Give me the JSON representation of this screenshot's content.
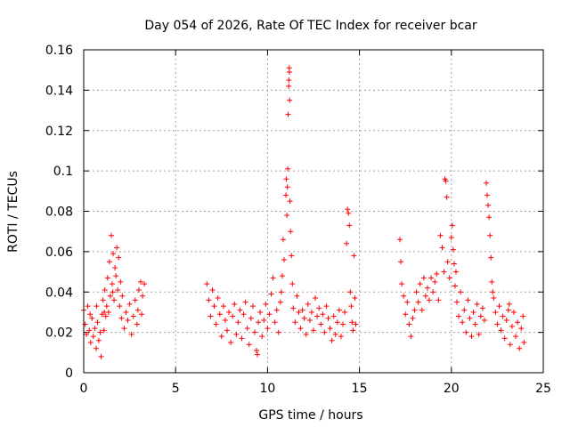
{
  "chart_data": {
    "type": "scatter",
    "title": "Day 054 of 2026, Rate Of TEC Index for receiver bcar",
    "xlabel": "GPS time / hours",
    "ylabel": "ROTI / TECUs",
    "xlim": [
      0,
      25
    ],
    "ylim": [
      0,
      0.16
    ],
    "xticks": [
      "0",
      "5",
      "10",
      "15",
      "20",
      "25"
    ],
    "yticks": [
      "0",
      "0.02",
      "0.04",
      "0.06",
      "0.08",
      "0.1",
      "0.12",
      "0.14",
      "0.16"
    ],
    "grid": true,
    "marker": "plus",
    "color": "#ff0000",
    "series": [
      {
        "points": [
          [
            0.0,
            0.031
          ],
          [
            0.08,
            0.024
          ],
          [
            0.15,
            0.019
          ],
          [
            0.22,
            0.033
          ],
          [
            0.3,
            0.021
          ],
          [
            0.38,
            0.015
          ],
          [
            0.45,
            0.027
          ],
          [
            0.52,
            0.018
          ],
          [
            0.6,
            0.022
          ],
          [
            0.68,
            0.012
          ],
          [
            0.75,
            0.025
          ],
          [
            0.82,
            0.016
          ],
          [
            0.9,
            0.02
          ],
          [
            0.95,
            0.008
          ],
          [
            1.0,
            0.029
          ],
          [
            1.05,
            0.036
          ],
          [
            1.1,
            0.021
          ],
          [
            1.15,
            0.041
          ],
          [
            1.2,
            0.028
          ],
          [
            1.25,
            0.033
          ],
          [
            1.3,
            0.047
          ],
          [
            1.35,
            0.03
          ],
          [
            1.4,
            0.055
          ],
          [
            1.45,
            0.038
          ],
          [
            1.5,
            0.068
          ],
          [
            1.55,
            0.044
          ],
          [
            1.6,
            0.059
          ],
          [
            1.65,
            0.036
          ],
          [
            1.7,
            0.052
          ],
          [
            1.75,
            0.048
          ],
          [
            1.8,
            0.062
          ],
          [
            1.85,
            0.041
          ],
          [
            1.9,
            0.057
          ],
          [
            1.95,
            0.033
          ],
          [
            2.0,
            0.045
          ],
          [
            2.05,
            0.027
          ],
          [
            2.1,
            0.038
          ],
          [
            2.2,
            0.022
          ],
          [
            2.3,
            0.03
          ],
          [
            2.4,
            0.026
          ],
          [
            2.5,
            0.034
          ],
          [
            2.6,
            0.019
          ],
          [
            2.7,
            0.028
          ],
          [
            2.8,
            0.036
          ],
          [
            2.9,
            0.024
          ],
          [
            3.0,
            0.041
          ],
          [
            3.1,
            0.045
          ],
          [
            3.2,
            0.038
          ],
          [
            3.3,
            0.044
          ],
          [
            3.15,
            0.029
          ],
          [
            2.95,
            0.031
          ],
          [
            0.35,
            0.029
          ],
          [
            0.7,
            0.033
          ],
          [
            1.12,
            0.03
          ],
          [
            1.58,
            0.04
          ],
          [
            6.7,
            0.044
          ],
          [
            6.8,
            0.036
          ],
          [
            6.9,
            0.028
          ],
          [
            7.0,
            0.041
          ],
          [
            7.1,
            0.033
          ],
          [
            7.2,
            0.024
          ],
          [
            7.3,
            0.037
          ],
          [
            7.4,
            0.029
          ],
          [
            7.5,
            0.018
          ],
          [
            7.6,
            0.033
          ],
          [
            7.7,
            0.026
          ],
          [
            7.8,
            0.021
          ],
          [
            7.9,
            0.03
          ],
          [
            8.0,
            0.015
          ],
          [
            8.1,
            0.028
          ],
          [
            8.2,
            0.034
          ],
          [
            8.3,
            0.019
          ],
          [
            8.4,
            0.025
          ],
          [
            8.5,
            0.031
          ],
          [
            8.6,
            0.017
          ],
          [
            8.7,
            0.029
          ],
          [
            8.8,
            0.035
          ],
          [
            8.9,
            0.022
          ],
          [
            9.0,
            0.014
          ],
          [
            9.1,
            0.027
          ],
          [
            9.2,
            0.033
          ],
          [
            9.3,
            0.02
          ],
          [
            9.4,
            0.011
          ],
          [
            9.5,
            0.025
          ],
          [
            9.6,
            0.03
          ],
          [
            9.7,
            0.018
          ],
          [
            9.8,
            0.026
          ],
          [
            9.9,
            0.034
          ],
          [
            10.0,
            0.022
          ],
          [
            10.1,
            0.029
          ],
          [
            10.2,
            0.039
          ],
          [
            10.3,
            0.047
          ],
          [
            10.4,
            0.025
          ],
          [
            10.5,
            0.031
          ],
          [
            10.6,
            0.02
          ],
          [
            10.7,
            0.035
          ],
          [
            10.8,
            0.048
          ],
          [
            10.85,
            0.066
          ],
          [
            10.9,
            0.056
          ],
          [
            11.0,
            0.088
          ],
          [
            11.05,
            0.078
          ],
          [
            11.1,
            0.101
          ],
          [
            11.12,
            0.128
          ],
          [
            11.15,
            0.142
          ],
          [
            11.18,
            0.151
          ],
          [
            11.2,
            0.135
          ],
          [
            11.22,
            0.085
          ],
          [
            11.25,
            0.07
          ],
          [
            11.3,
            0.058
          ],
          [
            11.35,
            0.044
          ],
          [
            11.4,
            0.032
          ],
          [
            11.5,
            0.025
          ],
          [
            11.6,
            0.038
          ],
          [
            11.7,
            0.03
          ],
          [
            11.8,
            0.022
          ],
          [
            11.9,
            0.031
          ],
          [
            12.0,
            0.027
          ],
          [
            12.1,
            0.019
          ],
          [
            12.2,
            0.034
          ],
          [
            12.3,
            0.026
          ],
          [
            12.4,
            0.03
          ],
          [
            12.5,
            0.021
          ],
          [
            12.6,
            0.037
          ],
          [
            12.7,
            0.028
          ],
          [
            12.8,
            0.032
          ],
          [
            12.9,
            0.024
          ],
          [
            13.0,
            0.029
          ],
          [
            13.1,
            0.02
          ],
          [
            13.2,
            0.033
          ],
          [
            13.3,
            0.027
          ],
          [
            13.4,
            0.022
          ],
          [
            13.5,
            0.016
          ],
          [
            13.6,
            0.028
          ],
          [
            13.7,
            0.019
          ],
          [
            13.8,
            0.025
          ],
          [
            13.9,
            0.031
          ],
          [
            14.0,
            0.018
          ],
          [
            14.1,
            0.024
          ],
          [
            14.2,
            0.03
          ],
          [
            14.3,
            0.064
          ],
          [
            14.35,
            0.081
          ],
          [
            14.4,
            0.079
          ],
          [
            14.45,
            0.073
          ],
          [
            14.5,
            0.04
          ],
          [
            14.55,
            0.033
          ],
          [
            14.6,
            0.025
          ],
          [
            14.65,
            0.021
          ],
          [
            14.7,
            0.058
          ],
          [
            14.75,
            0.037
          ],
          [
            14.8,
            0.024
          ],
          [
            9.45,
            0.009
          ],
          [
            10.75,
            0.04
          ],
          [
            11.08,
            0.092
          ],
          [
            11.02,
            0.096
          ],
          [
            11.16,
            0.145
          ],
          [
            11.19,
            0.149
          ],
          [
            17.2,
            0.066
          ],
          [
            17.25,
            0.055
          ],
          [
            17.3,
            0.044
          ],
          [
            17.4,
            0.038
          ],
          [
            17.5,
            0.029
          ],
          [
            17.6,
            0.035
          ],
          [
            17.7,
            0.024
          ],
          [
            17.8,
            0.018
          ],
          [
            17.9,
            0.027
          ],
          [
            18.0,
            0.031
          ],
          [
            18.1,
            0.04
          ],
          [
            18.2,
            0.035
          ],
          [
            18.3,
            0.044
          ],
          [
            18.4,
            0.031
          ],
          [
            18.5,
            0.047
          ],
          [
            18.6,
            0.038
          ],
          [
            18.7,
            0.042
          ],
          [
            18.8,
            0.036
          ],
          [
            18.9,
            0.047
          ],
          [
            19.0,
            0.04
          ],
          [
            19.1,
            0.045
          ],
          [
            19.2,
            0.049
          ],
          [
            19.3,
            0.036
          ],
          [
            19.4,
            0.068
          ],
          [
            19.5,
            0.062
          ],
          [
            19.6,
            0.05
          ],
          [
            19.65,
            0.096
          ],
          [
            19.7,
            0.095
          ],
          [
            19.75,
            0.087
          ],
          [
            19.8,
            0.055
          ],
          [
            19.9,
            0.047
          ],
          [
            20.0,
            0.067
          ],
          [
            20.05,
            0.073
          ],
          [
            20.1,
            0.061
          ],
          [
            20.15,
            0.054
          ],
          [
            20.2,
            0.043
          ],
          [
            20.3,
            0.035
          ],
          [
            20.4,
            0.028
          ],
          [
            20.5,
            0.04
          ],
          [
            20.6,
            0.025
          ],
          [
            20.7,
            0.031
          ],
          [
            20.8,
            0.02
          ],
          [
            20.9,
            0.036
          ],
          [
            21.0,
            0.027
          ],
          [
            21.1,
            0.018
          ],
          [
            21.2,
            0.03
          ],
          [
            21.3,
            0.024
          ],
          [
            21.4,
            0.034
          ],
          [
            21.5,
            0.019
          ],
          [
            21.6,
            0.028
          ],
          [
            21.7,
            0.032
          ],
          [
            21.8,
            0.026
          ],
          [
            21.9,
            0.094
          ],
          [
            21.95,
            0.088
          ],
          [
            22.0,
            0.083
          ],
          [
            22.05,
            0.077
          ],
          [
            22.1,
            0.068
          ],
          [
            22.15,
            0.057
          ],
          [
            22.2,
            0.045
          ],
          [
            22.3,
            0.037
          ],
          [
            22.4,
            0.03
          ],
          [
            22.5,
            0.024
          ],
          [
            22.6,
            0.033
          ],
          [
            22.7,
            0.021
          ],
          [
            22.8,
            0.028
          ],
          [
            22.9,
            0.017
          ],
          [
            23.0,
            0.026
          ],
          [
            23.1,
            0.031
          ],
          [
            23.2,
            0.014
          ],
          [
            23.3,
            0.023
          ],
          [
            23.4,
            0.03
          ],
          [
            23.5,
            0.018
          ],
          [
            23.6,
            0.025
          ],
          [
            23.7,
            0.012
          ],
          [
            23.8,
            0.022
          ],
          [
            23.9,
            0.028
          ],
          [
            23.95,
            0.015
          ],
          [
            20.25,
            0.05
          ],
          [
            22.25,
            0.04
          ],
          [
            23.15,
            0.034
          ]
        ]
      }
    ]
  }
}
